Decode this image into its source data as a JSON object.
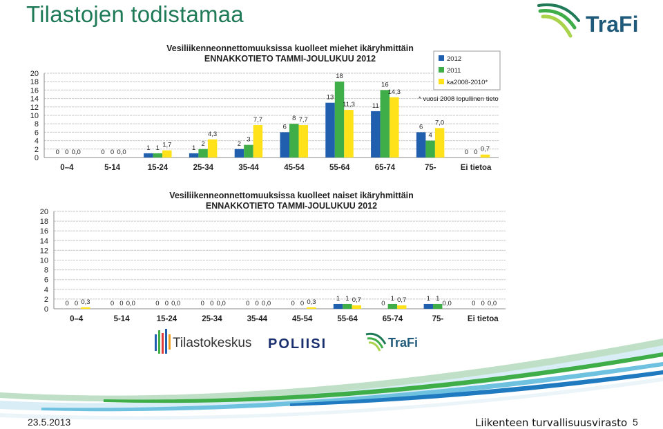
{
  "slide": {
    "title": "Tilastojen todistamaa",
    "date": "23.5.2013",
    "organization": "Liikenteen turvallisuusvirasto",
    "page_number": "5",
    "colors": {
      "title": "#1f7a57",
      "s2012": "#1f5fae",
      "s2011": "#3fae49",
      "savg": "#ffe21a"
    }
  },
  "logos": {
    "trafi": "TraFi",
    "tilastokeskus": "Tilastokeskus",
    "poliisi": "POLIISI"
  },
  "chart_data": [
    {
      "type": "bar",
      "title": "Vesiliikenneonnettomuuksissa kuolleet miehet ikäryhmittäin",
      "subtitle": "ENNAKKOTIETO TAMMI-JOULUKUU 2012",
      "categories": [
        "0–4",
        "5-14",
        "15-24",
        "25-34",
        "35-44",
        "45-54",
        "55-64",
        "65-74",
        "75-",
        "Ei tietoa"
      ],
      "series": [
        {
          "name": "2012",
          "values": [
            0,
            0,
            1,
            1,
            2,
            6,
            13,
            11,
            6,
            0
          ],
          "labels": [
            "0",
            "0",
            "1",
            "1",
            "2",
            "6",
            "13",
            "11",
            "6",
            "0"
          ]
        },
        {
          "name": "2011",
          "values": [
            0,
            0,
            1,
            2,
            3,
            8,
            18,
            16,
            4,
            0
          ],
          "labels": [
            "0",
            "0",
            "1",
            "2",
            "3",
            "8",
            "18",
            "16",
            "4",
            "0"
          ]
        },
        {
          "name": "ka2008-2010*",
          "values": [
            0,
            0,
            1.7,
            4.3,
            7.7,
            7.7,
            11.3,
            14.3,
            7.0,
            0.7
          ],
          "labels": [
            "0,0",
            "0,0",
            "1,7",
            "4,3",
            "7,7",
            "7,7",
            "11,3",
            "14,3",
            "7,0",
            "0,7"
          ]
        }
      ],
      "yticks": [
        "0",
        "2",
        "4",
        "6",
        "8",
        "10",
        "12",
        "14",
        "16",
        "18",
        "20"
      ],
      "ylim": [
        0,
        20
      ],
      "grid": true,
      "legend_position": "top-right",
      "note": "* vuosi 2008 lopullinen tieto"
    },
    {
      "type": "bar",
      "title": "Vesiliikenneonnettomuuksissa kuolleet naiset ikäryhmittäin",
      "subtitle": "ENNAKKOTIETO TAMMI-JOULUKUU 2012",
      "categories": [
        "0–4",
        "5-14",
        "15-24",
        "25-34",
        "35-44",
        "45-54",
        "55-64",
        "65-74",
        "75-",
        "Ei tietoa"
      ],
      "series": [
        {
          "name": "2012",
          "values": [
            0,
            0,
            0,
            0,
            0,
            0,
            1,
            0,
            1,
            0
          ],
          "labels": [
            "0",
            "0",
            "0",
            "0",
            "0",
            "0",
            "1",
            "0",
            "1",
            "0"
          ]
        },
        {
          "name": "2011",
          "values": [
            0,
            0,
            0,
            0,
            0,
            0,
            1,
            1,
            1,
            0
          ],
          "labels": [
            "0",
            "0",
            "0",
            "0",
            "0",
            "0",
            "1",
            "1",
            "1",
            "0"
          ]
        },
        {
          "name": "ka2008-2010*",
          "values": [
            0.3,
            0,
            0,
            0,
            0,
            0.3,
            0.7,
            0.7,
            0,
            0
          ],
          "labels": [
            "0,3",
            "0,0",
            "0,0",
            "0,0",
            "0,0",
            "0,3",
            "0,7",
            "0,7",
            "0,0",
            "0,0"
          ]
        }
      ],
      "yticks": [
        "0",
        "2",
        "4",
        "6",
        "8",
        "10",
        "12",
        "14",
        "16",
        "18",
        "20"
      ],
      "ylim": [
        0,
        20
      ],
      "grid": true
    }
  ]
}
